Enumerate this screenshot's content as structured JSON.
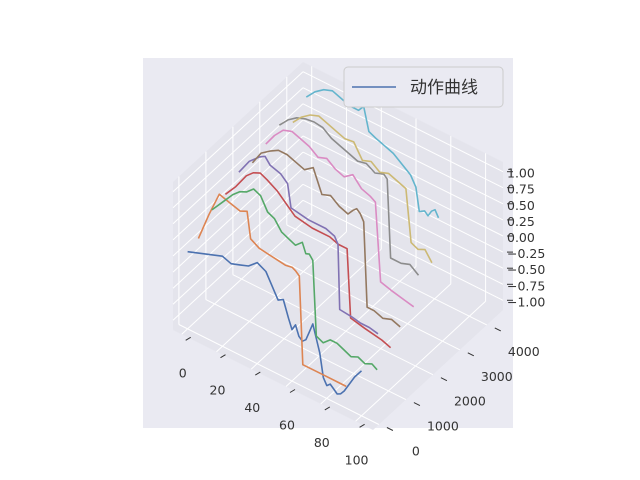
{
  "chart_data": {
    "type": "line",
    "projection": "3d",
    "legend": {
      "label": "动作曲线",
      "color": "#4c72b0",
      "placement": "top-right"
    },
    "x_ticks": [
      "0",
      "20",
      "40",
      "60",
      "80",
      "100"
    ],
    "y_ticks": [
      "0",
      "1000",
      "2000",
      "3000",
      "4000"
    ],
    "z_ticks": [
      "−1.00",
      "−0.75",
      "−0.50",
      "−0.25",
      "0.00",
      "0.25",
      "0.50",
      "0.75",
      "1.00"
    ],
    "xlim": [
      -5,
      110
    ],
    "ylim": [
      -220,
      4600
    ],
    "zlim": [
      -1.15,
      1.15
    ],
    "grid": true,
    "series": [
      {
        "color": "#4c72b0",
        "y": 0,
        "points": [
          [
            0,
            0.05
          ],
          [
            10,
            0.15
          ],
          [
            20,
            0.25
          ],
          [
            25,
            0.2
          ],
          [
            30,
            0.25
          ],
          [
            35,
            0.3
          ],
          [
            40,
            0.42
          ],
          [
            45,
            0.35
          ],
          [
            48,
            0.2
          ],
          [
            50,
            0.1
          ],
          [
            52,
            0.0
          ],
          [
            55,
            0.05
          ],
          [
            58,
            -0.2
          ],
          [
            60,
            -0.35
          ],
          [
            62,
            -0.25
          ],
          [
            64,
            -0.4
          ],
          [
            66,
            -0.45
          ],
          [
            68,
            -0.4
          ],
          [
            70,
            -0.25
          ],
          [
            72,
            -0.1
          ],
          [
            74,
            -0.3
          ],
          [
            76,
            -0.5
          ],
          [
            78,
            -0.85
          ],
          [
            80,
            -0.95
          ],
          [
            82,
            -0.9
          ],
          [
            84,
            -0.95
          ],
          [
            86,
            -1.0
          ],
          [
            88,
            -0.97
          ],
          [
            90,
            -0.9
          ],
          [
            93,
            -0.75
          ],
          [
            96,
            -0.6
          ],
          [
            100,
            -0.45
          ]
        ]
      },
      {
        "color": "#dd8452",
        "y": 400,
        "points": [
          [
            0,
            0.1
          ],
          [
            6,
            0.55
          ],
          [
            12,
            0.95
          ],
          [
            18,
            0.9
          ],
          [
            24,
            0.85
          ],
          [
            28,
            0.9
          ],
          [
            30,
            0.5
          ],
          [
            35,
            0.42
          ],
          [
            40,
            0.4
          ],
          [
            45,
            0.38
          ],
          [
            50,
            0.36
          ],
          [
            54,
            0.38
          ],
          [
            56,
            0.35
          ],
          [
            58,
            0.3
          ],
          [
            60,
            -1.05
          ],
          [
            70,
            -1.05
          ],
          [
            80,
            -1.05
          ],
          [
            85,
            -1.05
          ]
        ]
      },
      {
        "color": "#55a868",
        "y": 900,
        "points": [
          [
            0,
            0.35
          ],
          [
            6,
            0.55
          ],
          [
            12,
            0.75
          ],
          [
            16,
            0.85
          ],
          [
            20,
            0.9
          ],
          [
            24,
            1.0
          ],
          [
            28,
            0.95
          ],
          [
            32,
            0.75
          ],
          [
            36,
            0.7
          ],
          [
            40,
            0.55
          ],
          [
            44,
            0.5
          ],
          [
            48,
            0.45
          ],
          [
            52,
            0.55
          ],
          [
            54,
            0.4
          ],
          [
            56,
            0.42
          ],
          [
            58,
            0.35
          ],
          [
            60,
            -0.8
          ],
          [
            64,
            -0.85
          ],
          [
            68,
            -0.75
          ],
          [
            72,
            -0.75
          ],
          [
            76,
            -0.8
          ],
          [
            80,
            -0.85
          ],
          [
            84,
            -0.8
          ],
          [
            88,
            -0.85
          ],
          [
            92,
            -0.8
          ],
          [
            95,
            -0.85
          ]
        ]
      },
      {
        "color": "#c44e52",
        "y": 1400,
        "points": [
          [
            0,
            0.4
          ],
          [
            6,
            0.6
          ],
          [
            12,
            0.85
          ],
          [
            16,
            0.95
          ],
          [
            20,
            1.0
          ],
          [
            24,
            0.95
          ],
          [
            30,
            0.85
          ],
          [
            36,
            0.7
          ],
          [
            40,
            0.6
          ],
          [
            50,
            0.55
          ],
          [
            60,
            0.55
          ],
          [
            65,
            0.5
          ],
          [
            70,
            0.5
          ],
          [
            72,
            -0.55
          ],
          [
            80,
            -0.6
          ],
          [
            90,
            -0.65
          ],
          [
            95,
            -0.7
          ]
        ]
      },
      {
        "color": "#8172b3",
        "y": 1900,
        "points": [
          [
            0,
            0.55
          ],
          [
            6,
            0.8
          ],
          [
            12,
            0.95
          ],
          [
            15,
            1.0
          ],
          [
            18,
            0.9
          ],
          [
            24,
            0.85
          ],
          [
            28,
            0.75
          ],
          [
            30,
            0.4
          ],
          [
            40,
            0.35
          ],
          [
            50,
            0.35
          ],
          [
            55,
            0.3
          ],
          [
            57,
            0.2
          ],
          [
            58,
            -0.8
          ],
          [
            65,
            -0.82
          ],
          [
            70,
            -0.85
          ],
          [
            75,
            -0.85
          ],
          [
            80,
            -0.88
          ]
        ]
      },
      {
        "color": "#937860",
        "y": 2400,
        "points": [
          [
            0,
            0.5
          ],
          [
            5,
            0.72
          ],
          [
            10,
            0.82
          ],
          [
            15,
            0.9
          ],
          [
            20,
            0.9
          ],
          [
            25,
            0.85
          ],
          [
            30,
            0.8
          ],
          [
            35,
            0.9
          ],
          [
            40,
            0.55
          ],
          [
            45,
            0.6
          ],
          [
            50,
            0.5
          ],
          [
            55,
            0.45
          ],
          [
            58,
            0.55
          ],
          [
            60,
            0.6
          ],
          [
            62,
            0.55
          ],
          [
            64,
            0.45
          ],
          [
            66,
            -0.85
          ],
          [
            70,
            -0.85
          ],
          [
            75,
            -0.9
          ],
          [
            80,
            -0.85
          ],
          [
            85,
            -0.9
          ]
        ]
      },
      {
        "color": "#da8bc3",
        "y": 2900,
        "points": [
          [
            0,
            0.6
          ],
          [
            5,
            0.8
          ],
          [
            10,
            0.95
          ],
          [
            15,
            1.0
          ],
          [
            20,
            0.95
          ],
          [
            25,
            0.9
          ],
          [
            30,
            0.8
          ],
          [
            35,
            0.85
          ],
          [
            40,
            0.75
          ],
          [
            45,
            0.7
          ],
          [
            50,
            0.8
          ],
          [
            55,
            0.65
          ],
          [
            60,
            0.6
          ],
          [
            63,
            0.55
          ],
          [
            66,
            -0.65
          ],
          [
            72,
            -0.7
          ],
          [
            80,
            -0.75
          ],
          [
            85,
            -0.78
          ]
        ]
      },
      {
        "color": "#8c8c8c",
        "y": 3400,
        "points": [
          [
            0,
            0.7
          ],
          [
            5,
            0.85
          ],
          [
            10,
            0.95
          ],
          [
            15,
            1.0
          ],
          [
            20,
            1.02
          ],
          [
            25,
            1.0
          ],
          [
            30,
            0.9
          ],
          [
            35,
            0.85
          ],
          [
            40,
            0.8
          ],
          [
            45,
            0.75
          ],
          [
            50,
            0.78
          ],
          [
            55,
            0.7
          ],
          [
            60,
            0.75
          ],
          [
            62,
            0.7
          ],
          [
            64,
            -0.5
          ],
          [
            70,
            -0.5
          ],
          [
            75,
            -0.45
          ],
          [
            80,
            -0.55
          ]
        ]
      },
      {
        "color": "#ccb974",
        "y": 3900,
        "points": [
          [
            0,
            0.55
          ],
          [
            5,
            0.7
          ],
          [
            10,
            0.8
          ],
          [
            15,
            0.85
          ],
          [
            20,
            0.8
          ],
          [
            25,
            0.75
          ],
          [
            30,
            0.7
          ],
          [
            35,
            0.72
          ],
          [
            40,
            0.5
          ],
          [
            45,
            0.55
          ],
          [
            50,
            0.45
          ],
          [
            55,
            0.5
          ],
          [
            60,
            0.45
          ],
          [
            65,
            0.4
          ],
          [
            68,
            -0.4
          ],
          [
            72,
            -0.45
          ],
          [
            76,
            -0.4
          ],
          [
            80,
            -0.55
          ]
        ]
      },
      {
        "color": "#64b5cd",
        "y": 4400,
        "points": [
          [
            0,
            0.75
          ],
          [
            5,
            0.9
          ],
          [
            10,
            1.0
          ],
          [
            15,
            1.05
          ],
          [
            20,
            1.0
          ],
          [
            25,
            0.95
          ],
          [
            30,
            0.95
          ],
          [
            33,
            1.05
          ],
          [
            36,
            0.7
          ],
          [
            40,
            0.65
          ],
          [
            45,
            0.6
          ],
          [
            50,
            0.55
          ],
          [
            55,
            0.45
          ],
          [
            60,
            0.35
          ],
          [
            63,
            0.2
          ],
          [
            65,
            -0.15
          ],
          [
            68,
            -0.1
          ],
          [
            70,
            -0.15
          ],
          [
            72,
            -0.05
          ],
          [
            74,
            0.0
          ],
          [
            76,
            -0.1
          ]
        ]
      }
    ]
  }
}
